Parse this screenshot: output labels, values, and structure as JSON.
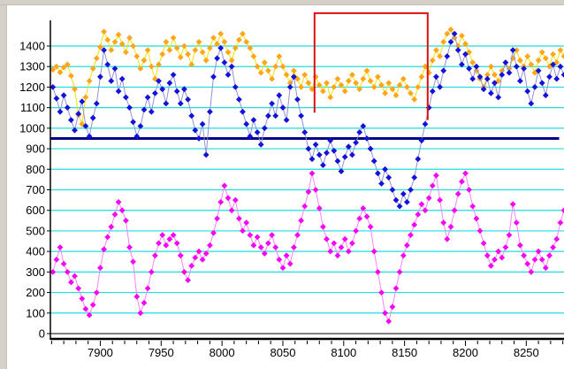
{
  "window": {
    "border_color": "#d5d1c9",
    "background_color": "#ffffff"
  },
  "chart_data": {
    "type": "scatter",
    "title": "",
    "xlabel": "",
    "ylabel": "",
    "grid": true,
    "gridline_color": "#1fdede",
    "axis_color": "#000000",
    "x_axis": {
      "min": 7859,
      "max": 8281,
      "major_tick_labels": [
        "7900",
        "7950",
        "8000",
        "8050",
        "8100",
        "8150",
        "8200",
        "8250"
      ],
      "major_tick_values": [
        7900,
        7950,
        8000,
        8050,
        8100,
        8150,
        8200,
        8250
      ],
      "minor_step": 10
    },
    "y_axis": {
      "min": 0,
      "max": 1525,
      "tick_labels": [
        "0",
        "100",
        "200",
        "300",
        "400",
        "500",
        "600",
        "700",
        "800",
        "900",
        "1000",
        "1100",
        "1200",
        "1300",
        "1400"
      ],
      "tick_values": [
        0,
        100,
        200,
        300,
        400,
        500,
        600,
        700,
        800,
        900,
        1000,
        1100,
        1200,
        1300,
        1400
      ]
    },
    "threshold_line": {
      "y": 950,
      "x1": 7859,
      "x2": 8277,
      "color": "#000088",
      "width": 3
    },
    "annotation_rect": {
      "x1": 8076,
      "x2": 8169,
      "y_top": 1560,
      "y_left_bottom": 1075,
      "y_right_bottom": 1040,
      "color": "#dd0f0f",
      "width": 2
    },
    "series": [
      {
        "name": "lower-band-magenta",
        "marker_color": "#f307f3",
        "line_color": "#fa84fa",
        "x0": 7861,
        "dx": 3,
        "values": [
          300,
          360,
          420,
          340,
          300,
          250,
          280,
          220,
          170,
          120,
          90,
          140,
          200,
          320,
          410,
          470,
          520,
          580,
          640,
          600,
          550,
          420,
          350,
          180,
          100,
          150,
          220,
          300,
          380,
          440,
          480,
          430,
          460,
          480,
          440,
          380,
          300,
          260,
          330,
          370,
          400,
          360,
          390,
          430,
          490,
          560,
          640,
          720,
          660,
          600,
          650,
          560,
          500,
          540,
          480,
          430,
          470,
          420,
          390,
          440,
          480,
          420,
          360,
          320,
          380,
          340,
          420,
          480,
          550,
          620,
          690,
          780,
          700,
          610,
          520,
          460,
          400,
          440,
          380,
          420,
          460,
          400,
          440,
          500,
          560,
          610,
          570,
          520,
          400,
          300,
          200,
          100,
          60,
          130,
          220,
          300,
          380,
          430,
          480,
          530,
          580,
          630,
          600,
          660,
          720,
          770,
          650,
          540,
          460,
          520,
          600,
          680,
          740,
          780,
          700,
          620,
          560,
          500,
          440,
          380,
          330,
          360,
          400,
          370,
          420,
          480,
          630,
          540,
          430,
          380,
          340,
          300,
          360,
          400,
          360,
          320,
          380,
          420,
          460,
          540,
          600
        ]
      },
      {
        "name": "upper-band-orange",
        "marker_color": "#ffa51c",
        "line_color": "#f2e202",
        "x0": 7861,
        "dx": 3,
        "values": [
          1285,
          1300,
          1272,
          1296,
          1310,
          1255,
          1190,
          1065,
          1020,
          1150,
          1230,
          1290,
          1340,
          1395,
          1470,
          1430,
          1380,
          1420,
          1455,
          1410,
          1370,
          1440,
          1400,
          1350,
          1290,
          1330,
          1380,
          1300,
          1240,
          1310,
          1360,
          1420,
          1380,
          1440,
          1390,
          1345,
          1400,
          1360,
          1310,
          1380,
          1420,
          1370,
          1330,
          1390,
          1440,
          1410,
          1460,
          1420,
          1370,
          1330,
          1390,
          1430,
          1460,
          1420,
          1390,
          1350,
          1300,
          1270,
          1320,
          1280,
          1240,
          1300,
          1350,
          1300,
          1260,
          1220,
          1280,
          1240,
          1200,
          1260,
          1220,
          1190,
          1250,
          1210,
          1180,
          1220,
          1150,
          1200,
          1240,
          1210,
          1180,
          1230,
          1260,
          1220,
          1190,
          1240,
          1280,
          1230,
          1200,
          1250,
          1210,
          1170,
          1220,
          1190,
          1160,
          1210,
          1240,
          1200,
          1170,
          1140,
          1200,
          1250,
          1300,
          1270,
          1330,
          1380,
          1350,
          1420,
          1460,
          1480,
          1440,
          1400,
          1450,
          1410,
          1370,
          1320,
          1280,
          1240,
          1200,
          1260,
          1300,
          1260,
          1230,
          1280,
          1320,
          1290,
          1340,
          1380,
          1330,
          1300,
          1350,
          1310,
          1270,
          1330,
          1370,
          1340,
          1300,
          1360,
          1320,
          1380,
          1350
        ]
      },
      {
        "name": "middle-band-blue",
        "marker_color": "#1212d8",
        "line_color": "#9292d4",
        "x0": 7861,
        "dx": 3,
        "values": [
          1200,
          1145,
          1080,
          1160,
          1100,
          1040,
          990,
          1070,
          1130,
          1010,
          960,
          1050,
          1120,
          1250,
          1380,
          1310,
          1230,
          1290,
          1180,
          1240,
          1150,
          1100,
          1030,
          960,
          1010,
          1090,
          1150,
          1080,
          1170,
          1230,
          1190,
          1120,
          1220,
          1260,
          1180,
          1120,
          1190,
          1140,
          1060,
          990,
          950,
          1020,
          870,
          1080,
          1250,
          1340,
          1390,
          1320,
          1260,
          1300,
          1200,
          1140,
          1080,
          1020,
          960,
          1040,
          980,
          920,
          1000,
          1060,
          1120,
          1060,
          1160,
          1100,
          1040,
          1200,
          1250,
          1140,
          1060,
          980,
          900,
          850,
          920,
          870,
          820,
          880,
          940,
          890,
          840,
          790,
          860,
          910,
          870,
          930,
          980,
          1010,
          950,
          900,
          840,
          780,
          730,
          800,
          760,
          700,
          650,
          620,
          680,
          640,
          700,
          760,
          850,
          940,
          1020,
          1100,
          1180,
          1250,
          1200,
          1280,
          1350,
          1420,
          1460,
          1380,
          1310,
          1360,
          1290,
          1240,
          1300,
          1250,
          1190,
          1240,
          1170,
          1220,
          1150,
          1260,
          1320,
          1270,
          1380,
          1300,
          1230,
          1290,
          1180,
          1120,
          1200,
          1280,
          1220,
          1160,
          1250,
          1310,
          1240,
          1300,
          1260
        ]
      }
    ]
  }
}
